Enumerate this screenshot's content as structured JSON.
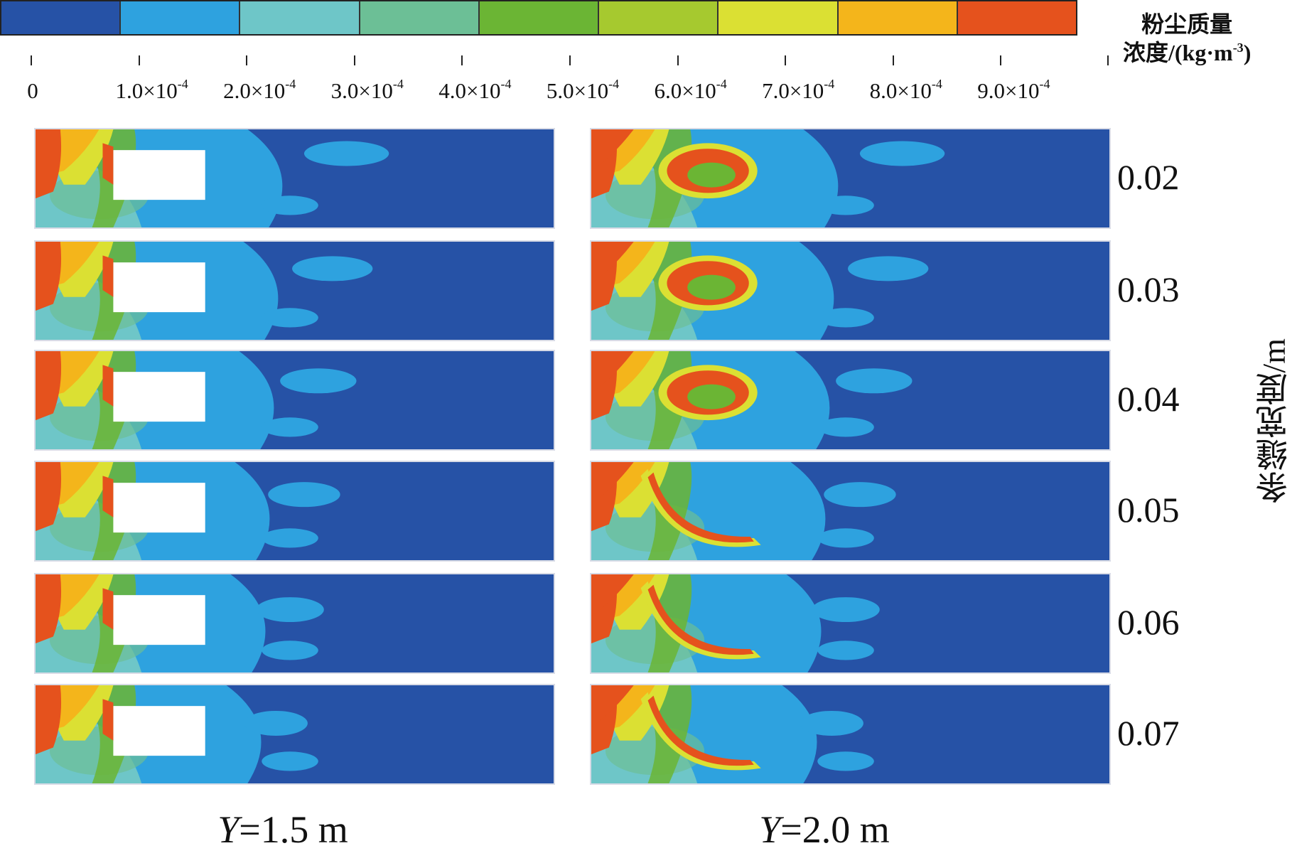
{
  "colorbar": {
    "title_line1": "粉尘质量",
    "title_line2_prefix": "浓度/(kg·m",
    "title_line2_exp": "-3",
    "title_line2_suffix": ")",
    "colors": [
      "#2652a6",
      "#2ea2df",
      "#6ec6c8",
      "#6cbf96",
      "#6bb534",
      "#a6c92f",
      "#dbe033",
      "#f4b51b",
      "#e5521d"
    ],
    "ticks": [
      {
        "mantissa": "0",
        "exp": ""
      },
      {
        "mantissa": "1.0×10",
        "exp": "-4"
      },
      {
        "mantissa": "2.0×10",
        "exp": "-4"
      },
      {
        "mantissa": "3.0×10",
        "exp": "-4"
      },
      {
        "mantissa": "4.0×10",
        "exp": "-4"
      },
      {
        "mantissa": "5.0×10",
        "exp": "-4"
      },
      {
        "mantissa": "6.0×10",
        "exp": "-4"
      },
      {
        "mantissa": "7.0×10",
        "exp": "-4"
      },
      {
        "mantissa": "8.0×10",
        "exp": "-4"
      },
      {
        "mantissa": "9.0×10",
        "exp": "-4"
      }
    ]
  },
  "row_axis_title": "条缝宽度/m",
  "rows": [
    "0.02",
    "0.03",
    "0.04",
    "0.05",
    "0.06",
    "0.07"
  ],
  "columns": [
    {
      "var": "Y",
      "rest": "=1.5 m"
    },
    {
      "var": "Y",
      "rest": "=2.0 m"
    }
  ]
}
